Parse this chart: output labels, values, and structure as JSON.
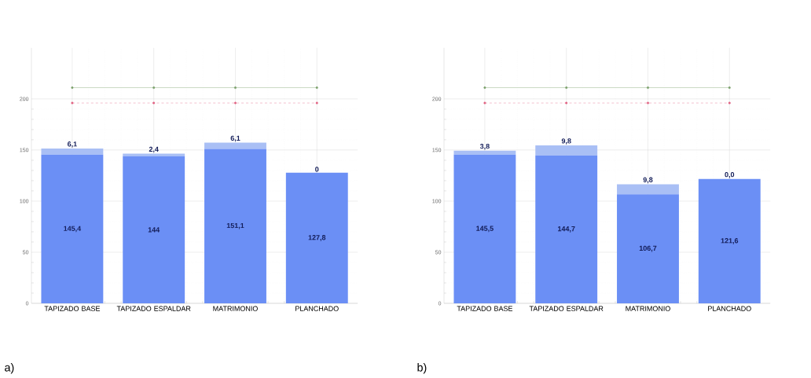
{
  "chart_data": [
    {
      "type": "bar",
      "stacked": true,
      "categories": [
        "TAPIZADO BASE",
        "TAPIZADO ESPALDAR",
        "MATRIMONIO",
        "PLANCHADO"
      ],
      "ylim": [
        0,
        250
      ],
      "yticks": [
        0,
        50,
        100,
        150,
        200
      ],
      "grid": true,
      "legend": false,
      "annotations": [
        "a)"
      ],
      "series": [
        {
          "color": "#6b8ff5",
          "values": [
            145.4,
            144,
            151.1,
            127.8
          ],
          "value_labels": [
            "145,4",
            "144",
            "151,1",
            "127,8"
          ]
        },
        {
          "color": "#a9bff5",
          "values": [
            6.1,
            2.4,
            6.1,
            0
          ],
          "value_labels": [
            "6,1",
            "2,4",
            "6,1",
            "0"
          ]
        },
        {
          "type": "line",
          "color": "#7aa06a",
          "marker": "circle",
          "line_style": "solid",
          "values": [
            211,
            211,
            211,
            211
          ]
        },
        {
          "type": "line",
          "color": "#e06080",
          "marker": "circle",
          "line_style": "dashed",
          "values": [
            196,
            196,
            196,
            196
          ]
        }
      ]
    },
    {
      "type": "bar",
      "stacked": true,
      "categories": [
        "TAPIZADO BASE",
        "TAPIZADO ESPALDAR",
        "MATRIMONIO",
        "PLANCHADO"
      ],
      "ylim": [
        0,
        250
      ],
      "yticks": [
        0,
        50,
        100,
        150,
        200
      ],
      "grid": true,
      "legend": false,
      "annotations": [
        "b)"
      ],
      "series": [
        {
          "color": "#6b8ff5",
          "values": [
            145.5,
            144.7,
            106.7,
            121.6
          ],
          "value_labels": [
            "145,5",
            "144,7",
            "106,7",
            "121,6"
          ]
        },
        {
          "color": "#a9bff5",
          "values": [
            3.8,
            9.8,
            9.8,
            0.0
          ],
          "value_labels": [
            "3,8",
            "9,8",
            "9,8",
            "0,0"
          ]
        },
        {
          "type": "line",
          "color": "#7aa06a",
          "marker": "circle",
          "line_style": "solid",
          "values": [
            211,
            211,
            211,
            211
          ]
        },
        {
          "type": "line",
          "color": "#e06080",
          "marker": "circle",
          "line_style": "dashed",
          "values": [
            196,
            196,
            196,
            196
          ]
        }
      ]
    }
  ]
}
